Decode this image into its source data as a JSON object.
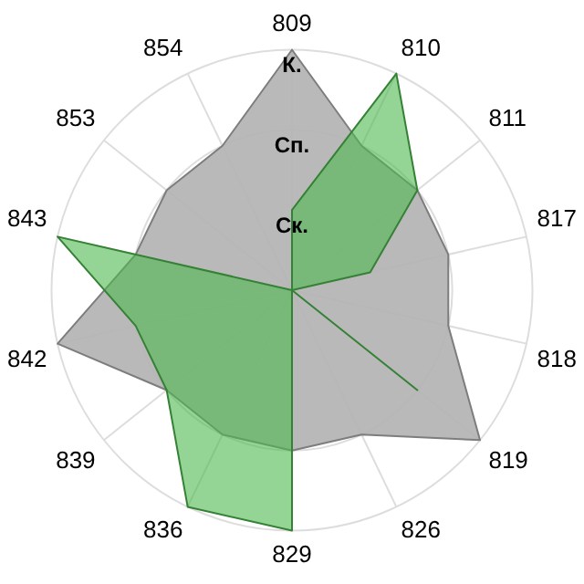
{
  "chart_data": {
    "type": "radar",
    "categories": [
      "809",
      "810",
      "811",
      "817",
      "818",
      "819",
      "826",
      "829",
      "836",
      "839",
      "842",
      "843",
      "853",
      "854"
    ],
    "series": [
      {
        "color": "#b3b3b3",
        "values": [
          3,
          2,
          2,
          2,
          2,
          3,
          2,
          2,
          2,
          2,
          3,
          2,
          2,
          2
        ]
      },
      {
        "color": "#4cb84c",
        "values": [
          1,
          3,
          2,
          1,
          0,
          2,
          0,
          3,
          3,
          2,
          2,
          3,
          0,
          0
        ]
      }
    ],
    "ylim": [
      0,
      3
    ],
    "yticks": [
      {
        "value": 1,
        "label": "Ск."
      },
      {
        "value": 2,
        "label": "Сп."
      },
      {
        "value": 3,
        "label": "К."
      }
    ],
    "grid": true,
    "legend": false,
    "marker": "none"
  }
}
